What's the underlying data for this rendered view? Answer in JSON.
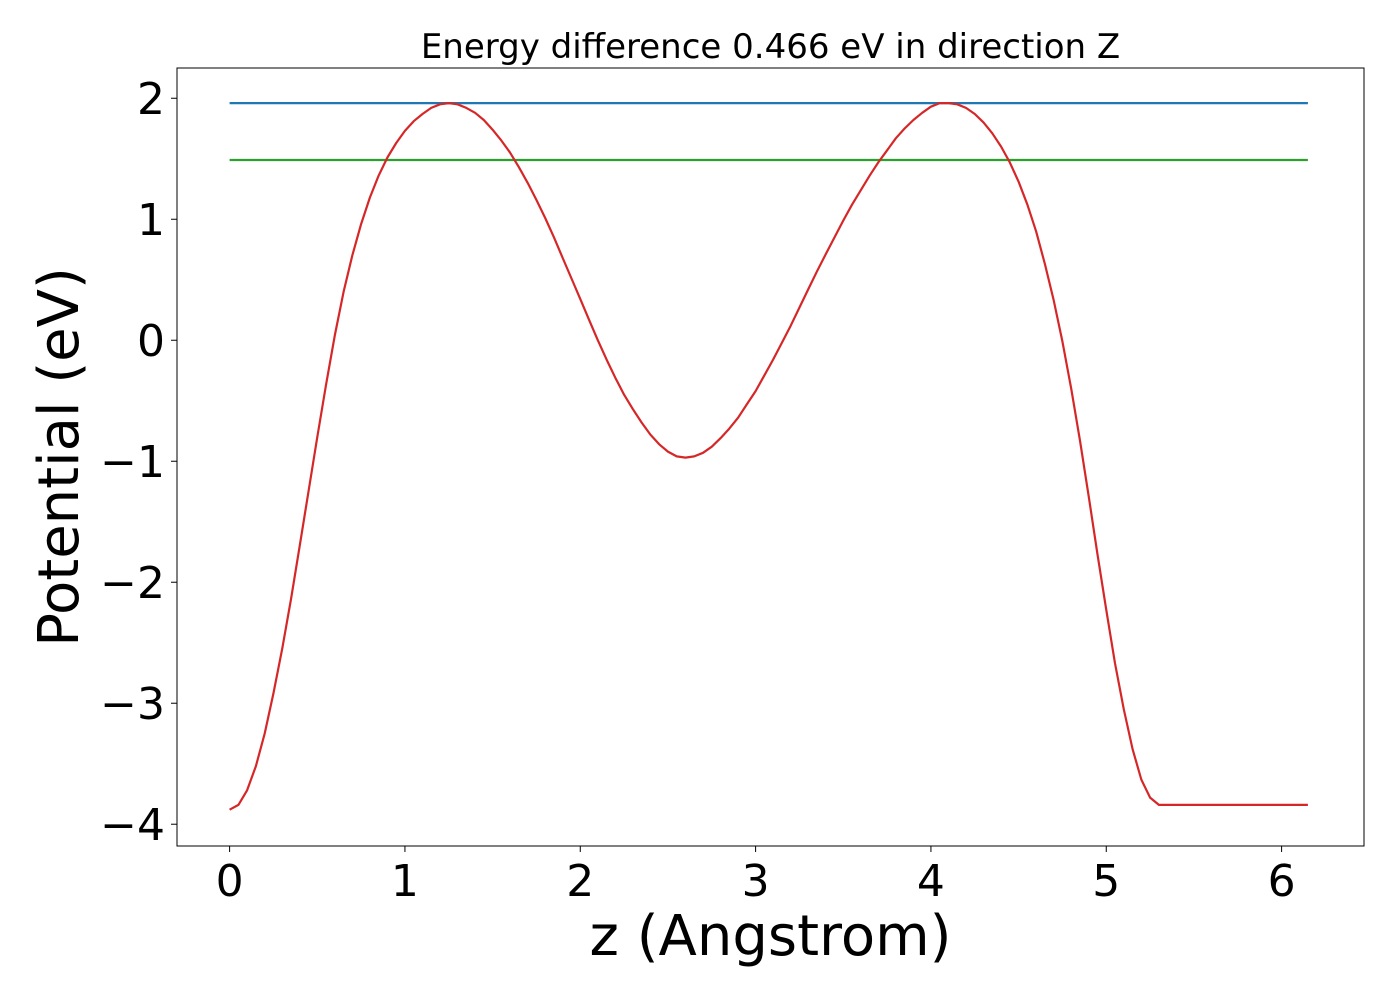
{
  "chart_data": {
    "type": "line",
    "title": "Energy difference 0.466 eV in direction Z",
    "xlabel": "z (Angstrom)",
    "ylabel": "Potential (eV)",
    "xlim": [
      -0.3,
      6.47
    ],
    "ylim": [
      -4.18,
      2.25
    ],
    "xticks": [
      0,
      1,
      2,
      3,
      4,
      5,
      6
    ],
    "xtick_labels": [
      "0",
      "1",
      "2",
      "3",
      "4",
      "5",
      "6"
    ],
    "yticks": [
      -4,
      -3,
      -2,
      -1,
      0,
      1,
      2
    ],
    "ytick_labels": [
      "−4",
      "−3",
      "−2",
      "−1",
      "0",
      "1",
      "2"
    ],
    "grid": false,
    "series": [
      {
        "color": "#1f77b4",
        "x": [
          0.0,
          6.15
        ],
        "y": [
          1.96,
          1.96
        ]
      },
      {
        "color": "#2ca02c",
        "x": [
          0.0,
          6.15
        ],
        "y": [
          1.49,
          1.49
        ]
      },
      {
        "color": "#d62728",
        "x": [
          0.0,
          0.05,
          0.1,
          0.15,
          0.2,
          0.25,
          0.3,
          0.35,
          0.4,
          0.45,
          0.5,
          0.55,
          0.6,
          0.65,
          0.7,
          0.75,
          0.8,
          0.85,
          0.9,
          0.95,
          1.0,
          1.05,
          1.1,
          1.15,
          1.2,
          1.25,
          1.3,
          1.35,
          1.4,
          1.45,
          1.5,
          1.55,
          1.6,
          1.65,
          1.7,
          1.75,
          1.8,
          1.85,
          1.9,
          1.95,
          2.0,
          2.05,
          2.1,
          2.15,
          2.2,
          2.25,
          2.3,
          2.35,
          2.4,
          2.45,
          2.5,
          2.55,
          2.6,
          2.65,
          2.7,
          2.75,
          2.8,
          2.85,
          2.9,
          2.95,
          3.0,
          3.05,
          3.1,
          3.15,
          3.2,
          3.25,
          3.3,
          3.35,
          3.4,
          3.45,
          3.5,
          3.55,
          3.6,
          3.65,
          3.7,
          3.75,
          3.8,
          3.85,
          3.9,
          3.95,
          4.0,
          4.05,
          4.1,
          4.15,
          4.2,
          4.25,
          4.3,
          4.35,
          4.4,
          4.45,
          4.5,
          4.55,
          4.6,
          4.65,
          4.7,
          4.75,
          4.8,
          4.85,
          4.9,
          4.95,
          5.0,
          5.05,
          5.1,
          5.15,
          5.2,
          5.25,
          5.3,
          5.35,
          5.4,
          5.45,
          5.5,
          5.55,
          5.6,
          5.65,
          5.7,
          5.75,
          5.8,
          5.85,
          5.9,
          5.95,
          6.0,
          6.05,
          6.1,
          6.15
        ],
        "y": [
          -3.88,
          -3.84,
          -3.72,
          -3.52,
          -3.25,
          -2.92,
          -2.55,
          -2.14,
          -1.7,
          -1.25,
          -0.8,
          -0.37,
          0.04,
          0.4,
          0.7,
          0.96,
          1.18,
          1.36,
          1.51,
          1.63,
          1.73,
          1.81,
          1.87,
          1.92,
          1.95,
          1.96,
          1.95,
          1.92,
          1.88,
          1.82,
          1.74,
          1.65,
          1.55,
          1.43,
          1.3,
          1.16,
          1.01,
          0.85,
          0.68,
          0.51,
          0.34,
          0.17,
          0.0,
          -0.16,
          -0.31,
          -0.45,
          -0.57,
          -0.68,
          -0.78,
          -0.86,
          -0.92,
          -0.96,
          -0.97,
          -0.96,
          -0.93,
          -0.88,
          -0.81,
          -0.73,
          -0.64,
          -0.53,
          -0.42,
          -0.29,
          -0.16,
          -0.02,
          0.12,
          0.27,
          0.42,
          0.57,
          0.71,
          0.85,
          0.99,
          1.12,
          1.24,
          1.36,
          1.47,
          1.57,
          1.67,
          1.75,
          1.82,
          1.88,
          1.93,
          1.96,
          1.96,
          1.95,
          1.92,
          1.87,
          1.8,
          1.71,
          1.6,
          1.47,
          1.31,
          1.12,
          0.9,
          0.63,
          0.33,
          -0.01,
          -0.4,
          -0.83,
          -1.29,
          -1.77,
          -2.23,
          -2.67,
          -3.05,
          -3.38,
          -3.63,
          -3.78,
          -3.84,
          -3.84,
          -3.84,
          -3.84,
          -3.84,
          -3.84,
          -3.84,
          -3.84,
          -3.84,
          -3.84,
          -3.84,
          -3.84,
          -3.84,
          -3.84,
          -3.84,
          -3.84,
          -3.84,
          -3.84
        ]
      }
    ]
  }
}
